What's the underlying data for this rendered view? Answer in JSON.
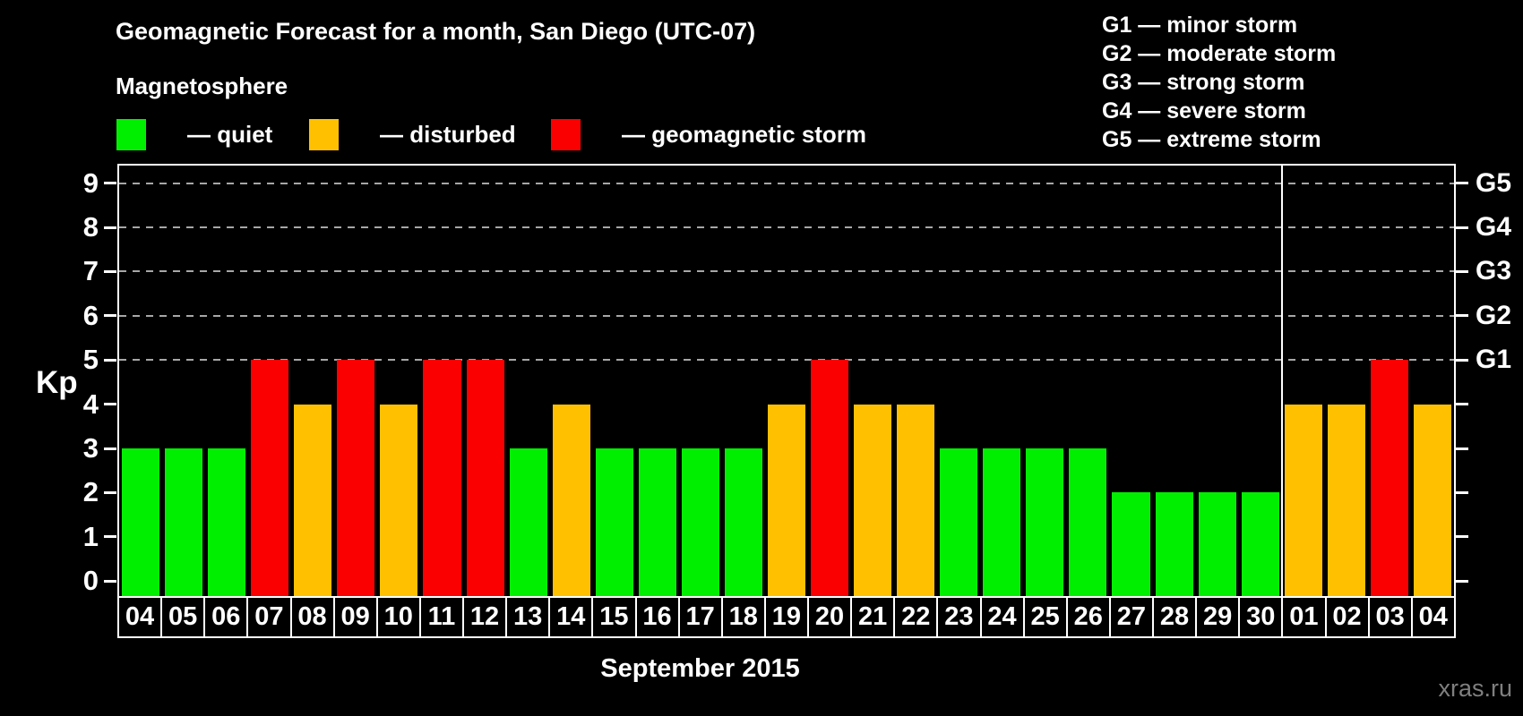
{
  "header": {
    "subtitle": "Magnetosphere"
  },
  "legend": {
    "items": [
      {
        "key": "quiet",
        "label": "— quiet",
        "color": "#00ef00"
      },
      {
        "key": "disturbed",
        "label": "— disturbed",
        "color": "#ffc000"
      },
      {
        "key": "storm",
        "label": "— geomagnetic storm",
        "color": "#fb0000"
      }
    ]
  },
  "g_scale_legend": {
    "items": [
      {
        "label": "G1 — minor storm"
      },
      {
        "label": "G2 — moderate storm"
      },
      {
        "label": "G3 — strong storm"
      },
      {
        "label": "G4 — severe storm"
      },
      {
        "label": "G5 — extreme storm"
      }
    ]
  },
  "watermark": "xras.ru",
  "chart_data": {
    "type": "bar",
    "title": "Geomagnetic Forecast for a month, San Diego (UTC-07)",
    "xlabel": "September 2015",
    "ylabel": "Kp",
    "ylim": [
      0,
      9
    ],
    "y_ticks": [
      0,
      1,
      2,
      3,
      4,
      5,
      6,
      7,
      8,
      9
    ],
    "right_axis": [
      {
        "kp": 5,
        "label": "G1"
      },
      {
        "kp": 6,
        "label": "G2"
      },
      {
        "kp": 7,
        "label": "G3"
      },
      {
        "kp": 8,
        "label": "G4"
      },
      {
        "kp": 9,
        "label": "G5"
      }
    ],
    "grid": "dashed horizontal lines at storm levels Kp 5-9 only",
    "legend_position": "top-left",
    "month_separator_after_index": 26,
    "days": [
      {
        "date": "04",
        "kp": 3,
        "status": "quiet"
      },
      {
        "date": "05",
        "kp": 3,
        "status": "quiet"
      },
      {
        "date": "06",
        "kp": 3,
        "status": "quiet"
      },
      {
        "date": "07",
        "kp": 5,
        "status": "storm"
      },
      {
        "date": "08",
        "kp": 4,
        "status": "disturbed"
      },
      {
        "date": "09",
        "kp": 5,
        "status": "storm"
      },
      {
        "date": "10",
        "kp": 4,
        "status": "disturbed"
      },
      {
        "date": "11",
        "kp": 5,
        "status": "storm"
      },
      {
        "date": "12",
        "kp": 5,
        "status": "storm"
      },
      {
        "date": "13",
        "kp": 3,
        "status": "quiet"
      },
      {
        "date": "14",
        "kp": 4,
        "status": "disturbed"
      },
      {
        "date": "15",
        "kp": 3,
        "status": "quiet"
      },
      {
        "date": "16",
        "kp": 3,
        "status": "quiet"
      },
      {
        "date": "17",
        "kp": 3,
        "status": "quiet"
      },
      {
        "date": "18",
        "kp": 3,
        "status": "quiet"
      },
      {
        "date": "19",
        "kp": 4,
        "status": "disturbed"
      },
      {
        "date": "20",
        "kp": 5,
        "status": "storm"
      },
      {
        "date": "21",
        "kp": 4,
        "status": "disturbed"
      },
      {
        "date": "22",
        "kp": 4,
        "status": "disturbed"
      },
      {
        "date": "23",
        "kp": 3,
        "status": "quiet"
      },
      {
        "date": "24",
        "kp": 3,
        "status": "quiet"
      },
      {
        "date": "25",
        "kp": 3,
        "status": "quiet"
      },
      {
        "date": "26",
        "kp": 3,
        "status": "quiet"
      },
      {
        "date": "27",
        "kp": 2,
        "status": "quiet"
      },
      {
        "date": "28",
        "kp": 2,
        "status": "quiet"
      },
      {
        "date": "29",
        "kp": 2,
        "status": "quiet"
      },
      {
        "date": "30",
        "kp": 2,
        "status": "quiet"
      },
      {
        "date": "01",
        "kp": 4,
        "status": "disturbed"
      },
      {
        "date": "02",
        "kp": 4,
        "status": "disturbed"
      },
      {
        "date": "03",
        "kp": 5,
        "status": "storm"
      },
      {
        "date": "04",
        "kp": 4,
        "status": "disturbed"
      }
    ]
  }
}
